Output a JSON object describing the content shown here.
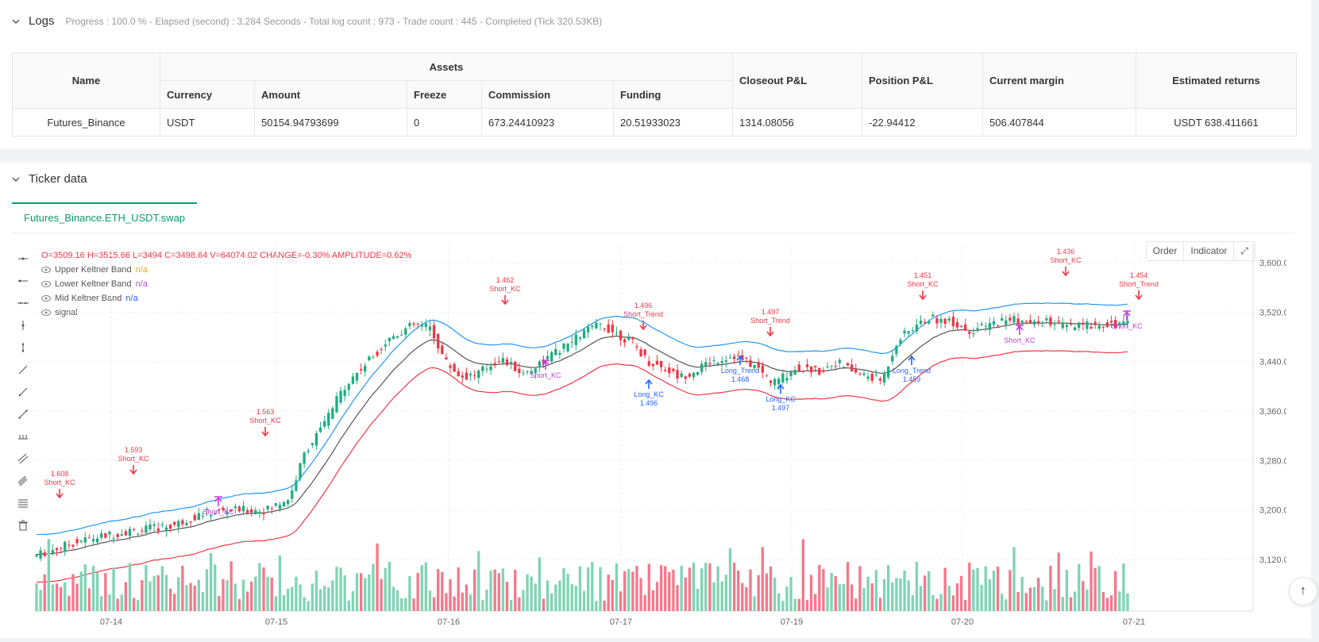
{
  "logs": {
    "title": "Logs",
    "status": "Progress : 100.0 % - Elapsed (second) : 3.284  Seconds - Total log count : 973 - Trade count : 445 - Completed (Tick 320.53KB)"
  },
  "assets_table": {
    "col_name": "Name",
    "col_assets": "Assets",
    "col_currency": "Currency",
    "col_amount": "Amount",
    "col_freeze": "Freeze",
    "col_commission": "Commission",
    "col_funding": "Funding",
    "col_closeout": "Closeout P&L",
    "col_position": "Position P&L",
    "col_margin": "Current margin",
    "col_returns": "Estimated returns",
    "row": {
      "name": "Futures_Binance",
      "currency": "USDT",
      "amount": "50154.94793699",
      "freeze": "0",
      "commission": "673.24410923",
      "funding": "20.51933023",
      "closeout": "1314.08056",
      "position": "-22.94412",
      "margin": "506.407844",
      "returns": "USDT 638.411661"
    }
  },
  "ticker": {
    "title": "Ticker data",
    "tab": "Futures_Binance.ETH_USDT.swap",
    "btn_order": "Order",
    "btn_indicator": "Indicator"
  },
  "ohlc": {
    "o": "O=3509.16",
    "h": "H=3515.66",
    "l": "L=3494",
    "c": "C=3498.64",
    "v": "V=64074.02",
    "change": "CHANGE=-0.30%",
    "amplitude": "AMPLITUDE=0.62%"
  },
  "legend": [
    {
      "name": "Upper Keltner Band",
      "value": "n/a",
      "color": "#f5a623"
    },
    {
      "name": "Lower Keltner Band",
      "value": "n/a",
      "color": "#b44bd6"
    },
    {
      "name": "Mid Keltner Band",
      "value": "n/a",
      "color": "#2962ff"
    },
    {
      "name": "signal",
      "value": "",
      "color": "#555"
    }
  ],
  "colors": {
    "up": "#26a69a",
    "up_fill": "#22ab80",
    "down": "#f23645",
    "upper": "#2196f3",
    "lower": "#f23645",
    "mid": "#555555",
    "short": "#e91e63",
    "short_kc": "#c03de0",
    "long": "#2962ff"
  },
  "chart_data": {
    "type": "candlestick",
    "y_ticks": [
      3120,
      3200,
      3280,
      3360,
      3440,
      3520,
      3600
    ],
    "ylim": [
      3080,
      3620
    ],
    "x_ticks": [
      "07-14",
      "07-15",
      "07-16",
      "07-17",
      "07-19",
      "07-20",
      "07-21"
    ],
    "annotations": [
      {
        "label": "1.608",
        "sub": "Short_KC",
        "kind": "short"
      },
      {
        "label": "1.593",
        "sub": "Short_KC",
        "kind": "short"
      },
      {
        "label": "1.563",
        "sub": "Short_KC",
        "kind": "short"
      },
      {
        "label": "1.462",
        "sub": "Short_KC",
        "kind": "short"
      },
      {
        "label": "1.496",
        "sub": "Short_Trend",
        "kind": "short"
      },
      {
        "label": "1.497",
        "sub": "Short_Trend",
        "kind": "short"
      },
      {
        "label": "1.451",
        "sub": "Short_KC",
        "kind": "short"
      },
      {
        "label": "1.436",
        "sub": "Short_KC",
        "kind": "short"
      },
      {
        "label": "1.454",
        "sub": "Short_Trend",
        "kind": "short"
      },
      {
        "label": "Short_KC",
        "sub": "",
        "kind": "exit"
      },
      {
        "label": "Short_KC",
        "sub": "",
        "kind": "exit"
      },
      {
        "label": "Short_KC",
        "sub": "",
        "kind": "exit"
      },
      {
        "label": "Short_KC",
        "sub": "",
        "kind": "exit"
      },
      {
        "label": "Long_KC",
        "sub": "1.496",
        "kind": "long"
      },
      {
        "label": "Long_Trend",
        "sub": "1.468",
        "kind": "long"
      },
      {
        "label": "Long_KC",
        "sub": "1.497",
        "kind": "long"
      },
      {
        "label": "Long_Trend",
        "sub": "1.459",
        "kind": "long"
      }
    ]
  }
}
